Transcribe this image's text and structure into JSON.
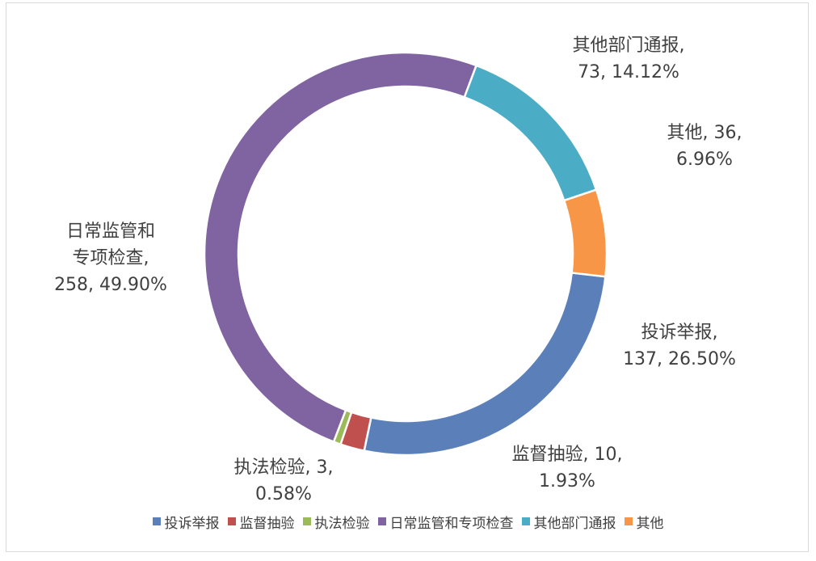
{
  "chart_data": {
    "type": "pie",
    "donut": true,
    "legend_position": "bottom",
    "series": [
      {
        "name": "投诉举报",
        "value": 137,
        "percent": "26.50%",
        "color": "#5b80b9",
        "label_lines": [
          "投诉举报,",
          "137, 26.50%"
        ]
      },
      {
        "name": "监督抽验",
        "value": 10,
        "percent": "1.93%",
        "color": "#c0504d",
        "label_lines": [
          "监督抽验, 10,",
          "1.93%"
        ]
      },
      {
        "name": "执法检验",
        "value": 3,
        "percent": "0.58%",
        "color": "#9bbb59",
        "label_lines": [
          "执法检验, 3,",
          "0.58%"
        ]
      },
      {
        "name": "日常监管和专项检查",
        "value": 258,
        "percent": "49.90%",
        "color": "#8064a2",
        "label_lines": [
          "日常监管和",
          "专项检查,",
          "258, 49.90%"
        ]
      },
      {
        "name": "其他部门通报",
        "value": 73,
        "percent": "14.12%",
        "color": "#4bacc6",
        "label_lines": [
          "其他部门通报,",
          "73, 14.12%"
        ]
      },
      {
        "name": "其他",
        "value": 36,
        "percent": "6.96%",
        "color": "#f79646",
        "label_lines": [
          "其他, 36,",
          "6.96%"
        ]
      }
    ]
  }
}
